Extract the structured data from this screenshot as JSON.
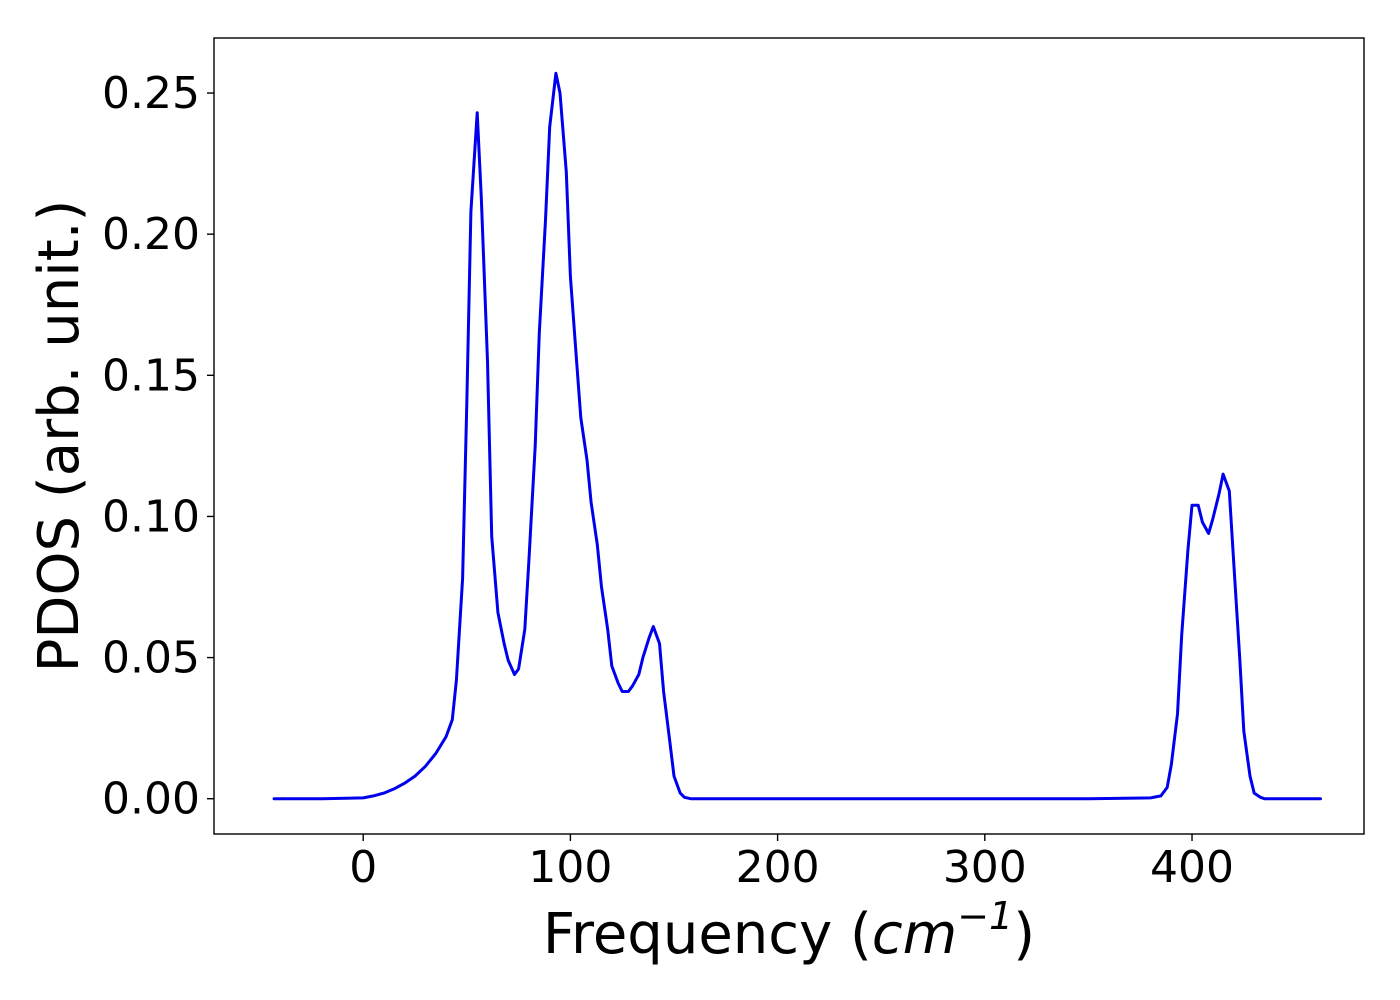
{
  "chart_data": {
    "type": "line",
    "title": "",
    "xlabel": "Frequency",
    "xlabel_unit": "cm",
    "xlabel_unit_exp": "−1",
    "ylabel": "PDOS (arb. unit.)",
    "xlim": [
      -72,
      483
    ],
    "ylim": [
      -0.0125,
      0.2695
    ],
    "grid": false,
    "xticks": [
      0,
      100,
      200,
      300,
      400
    ],
    "xtick_labels": [
      "0",
      "100",
      "200",
      "300",
      "400"
    ],
    "yticks": [
      0,
      0.05,
      0.1,
      0.15,
      0.2,
      0.25
    ],
    "ytick_labels": [
      "0.00",
      "0.05",
      "0.10",
      "0.15",
      "0.20",
      "0.25"
    ],
    "series": [
      {
        "color": "#0000ee",
        "x": [
          -43,
          -20,
          0,
          5,
          10,
          15,
          20,
          25,
          30,
          35,
          40,
          43,
          45,
          48,
          50,
          52,
          55,
          57,
          60,
          62,
          65,
          68,
          70,
          73,
          75,
          78,
          80,
          83,
          85,
          88,
          90,
          93,
          95,
          98,
          100,
          103,
          105,
          108,
          110,
          113,
          115,
          118,
          120,
          123,
          125,
          128,
          130,
          133,
          135,
          138,
          140,
          143,
          145,
          148,
          150,
          153,
          155,
          158,
          160,
          163,
          165,
          170,
          200,
          250,
          300,
          350,
          380,
          385,
          388,
          390,
          393,
          395,
          398,
          400,
          403,
          405,
          408,
          410,
          413,
          415,
          418,
          420,
          423,
          425,
          428,
          430,
          433,
          435,
          440,
          462
        ],
        "y": [
          0,
          0,
          0.0003,
          0.001,
          0.002,
          0.0035,
          0.0055,
          0.008,
          0.0115,
          0.016,
          0.022,
          0.028,
          0.042,
          0.078,
          0.14,
          0.208,
          0.243,
          0.213,
          0.155,
          0.093,
          0.066,
          0.055,
          0.049,
          0.044,
          0.046,
          0.06,
          0.085,
          0.125,
          0.165,
          0.205,
          0.238,
          0.257,
          0.25,
          0.222,
          0.185,
          0.155,
          0.135,
          0.12,
          0.105,
          0.09,
          0.075,
          0.06,
          0.047,
          0.041,
          0.038,
          0.038,
          0.04,
          0.044,
          0.05,
          0.057,
          0.061,
          0.055,
          0.038,
          0.02,
          0.008,
          0.002,
          0.0005,
          0,
          0,
          0,
          0,
          0,
          0,
          0,
          0,
          0,
          0.0003,
          0.001,
          0.004,
          0.012,
          0.03,
          0.058,
          0.088,
          0.104,
          0.104,
          0.098,
          0.094,
          0.099,
          0.108,
          0.115,
          0.109,
          0.085,
          0.05,
          0.024,
          0.008,
          0.002,
          0.0005,
          0,
          0,
          0
        ]
      }
    ]
  }
}
